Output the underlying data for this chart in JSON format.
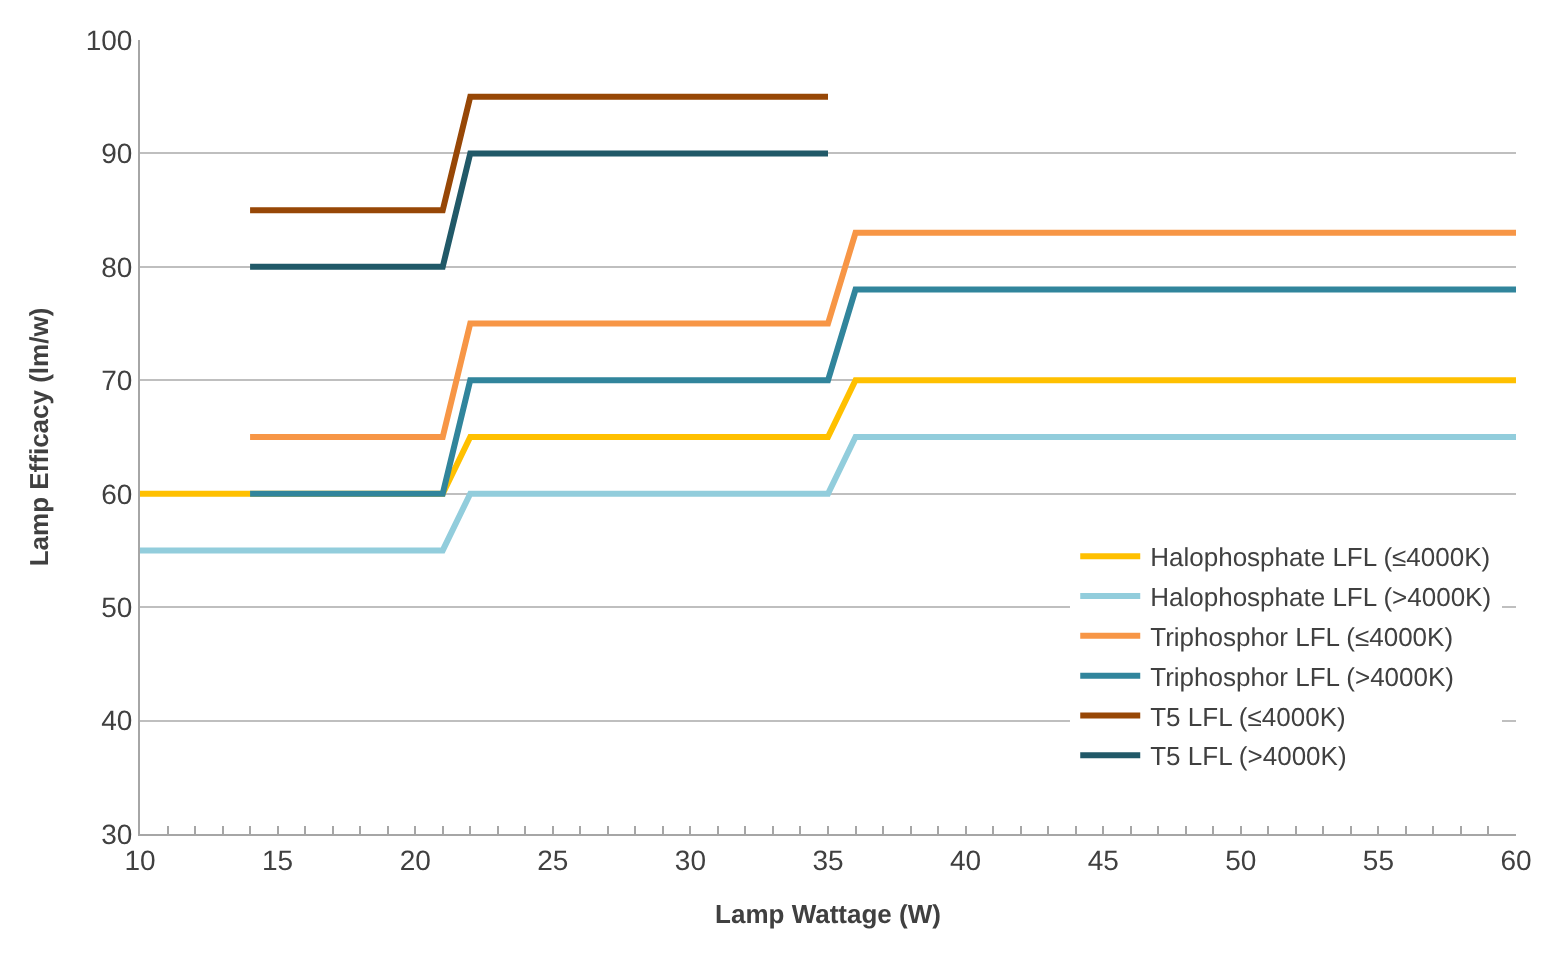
{
  "chart_data": {
    "type": "line",
    "xlabel": "Lamp Wattage (W)",
    "ylabel": "Lamp Efficacy (lm/w)",
    "xlim": [
      10,
      60
    ],
    "ylim": [
      30,
      100
    ],
    "xticks": [
      10,
      {
        "value": 11,
        "label": null
      },
      {
        "value": 12,
        "label": null
      },
      {
        "value": 13,
        "label": null
      },
      {
        "value": 14,
        "label": null
      },
      15,
      {
        "value": 16,
        "label": null
      },
      {
        "value": 17,
        "label": null
      },
      {
        "value": 18,
        "label": null
      },
      {
        "value": 19,
        "label": null
      },
      20,
      {
        "value": 21,
        "label": null
      },
      {
        "value": 22,
        "label": null
      },
      {
        "value": 23,
        "label": null
      },
      {
        "value": 24,
        "label": null
      },
      25,
      {
        "value": 26,
        "label": null
      },
      {
        "value": 27,
        "label": null
      },
      {
        "value": 28,
        "label": null
      },
      {
        "value": 29,
        "label": null
      },
      30,
      {
        "value": 31,
        "label": null
      },
      {
        "value": 32,
        "label": null
      },
      {
        "value": 33,
        "label": null
      },
      {
        "value": 34,
        "label": null
      },
      35,
      {
        "value": 36,
        "label": null
      },
      {
        "value": 37,
        "label": null
      },
      {
        "value": 38,
        "label": null
      },
      {
        "value": 39,
        "label": null
      },
      40,
      {
        "value": 41,
        "label": null
      },
      {
        "value": 42,
        "label": null
      },
      {
        "value": 43,
        "label": null
      },
      {
        "value": 44,
        "label": null
      },
      45,
      {
        "value": 46,
        "label": null
      },
      {
        "value": 47,
        "label": null
      },
      {
        "value": 48,
        "label": null
      },
      {
        "value": 49,
        "label": null
      },
      50,
      {
        "value": 51,
        "label": null
      },
      {
        "value": 52,
        "label": null
      },
      {
        "value": 53,
        "label": null
      },
      {
        "value": 54,
        "label": null
      },
      55,
      {
        "value": 56,
        "label": null
      },
      {
        "value": 57,
        "label": null
      },
      {
        "value": 58,
        "label": null
      },
      {
        "value": 59,
        "label": null
      },
      60
    ],
    "yticks": [
      30,
      40,
      50,
      60,
      70,
      80,
      90,
      100
    ],
    "grid": "y",
    "legend": "bottom right",
    "marker": "none",
    "line_style": "solid",
    "series": [
      {
        "name": "Halophosphate LFL (≤4000K)",
        "color": "#ffc000",
        "x": [
          10,
          21,
          22,
          35,
          36,
          60
        ],
        "values": [
          60,
          60,
          65,
          65,
          70,
          70
        ]
      },
      {
        "name": "Halophosphate LFL (>4000K)",
        "color": "#92cddc",
        "x": [
          10,
          21,
          22,
          35,
          36,
          60
        ],
        "values": [
          55,
          55,
          60,
          60,
          65,
          65
        ]
      },
      {
        "name": "Triphosphor LFL (≤4000K)",
        "color": "#f79646",
        "x": [
          14,
          21,
          22,
          35,
          36,
          60
        ],
        "values": [
          65,
          65,
          75,
          75,
          83,
          83
        ]
      },
      {
        "name": "Triphosphor LFL (>4000K)",
        "color": "#31859c",
        "x": [
          14,
          21,
          22,
          35,
          36,
          60
        ],
        "values": [
          60,
          60,
          70,
          70,
          78,
          78
        ]
      },
      {
        "name": "T5 LFL (≤4000K)",
        "color": "#974706",
        "x": [
          14,
          21,
          22,
          35
        ],
        "values": [
          85,
          85,
          95,
          95
        ]
      },
      {
        "name": "T5 LFL (>4000K)",
        "color": "#215968",
        "x": [
          14,
          21,
          22,
          35
        ],
        "values": [
          80,
          80,
          90,
          90
        ]
      }
    ]
  }
}
